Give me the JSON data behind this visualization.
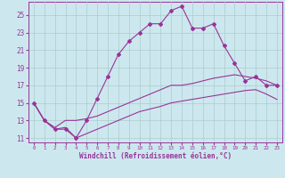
{
  "xlabel": "Windchill (Refroidissement éolien,°C)",
  "xlim": [
    -0.5,
    23.5
  ],
  "ylim": [
    10.5,
    26.5
  ],
  "yticks": [
    11,
    13,
    15,
    17,
    19,
    21,
    23,
    25
  ],
  "xticks": [
    0,
    1,
    2,
    3,
    4,
    5,
    6,
    7,
    8,
    9,
    10,
    11,
    12,
    13,
    14,
    15,
    16,
    17,
    18,
    19,
    20,
    21,
    22,
    23
  ],
  "bg_color": "#cce8ee",
  "grid_color": "#aacccc",
  "line_color": "#993399",
  "line1_x": [
    0,
    1,
    2,
    3,
    4,
    5,
    6,
    7,
    8,
    9,
    10,
    11,
    12,
    13,
    14,
    15,
    16,
    17,
    18,
    19,
    20,
    21,
    22,
    23
  ],
  "line1_y": [
    15.0,
    13.0,
    12.0,
    12.0,
    11.0,
    13.0,
    15.5,
    18.0,
    20.5,
    22.0,
    23.0,
    24.0,
    24.0,
    25.5,
    26.0,
    23.5,
    23.5,
    24.0,
    21.5,
    19.5,
    17.5,
    18.0,
    17.0,
    17.0
  ],
  "line2_x": [
    0,
    1,
    2,
    3,
    4,
    5,
    6,
    7,
    8,
    9,
    10,
    11,
    12,
    13,
    14,
    15,
    16,
    17,
    18,
    19,
    20,
    21,
    22,
    23
  ],
  "line2_y": [
    15.0,
    13.0,
    12.2,
    13.0,
    13.0,
    13.2,
    13.5,
    14.0,
    14.5,
    15.0,
    15.5,
    16.0,
    16.5,
    17.0,
    17.0,
    17.2,
    17.5,
    17.8,
    18.0,
    18.2,
    18.0,
    17.8,
    17.5,
    17.0
  ],
  "line3_x": [
    0,
    1,
    2,
    3,
    4,
    5,
    6,
    7,
    8,
    9,
    10,
    11,
    12,
    13,
    14,
    15,
    16,
    17,
    18,
    19,
    20,
    21,
    22,
    23
  ],
  "line3_y": [
    15.0,
    13.0,
    12.0,
    12.2,
    11.0,
    11.5,
    12.0,
    12.5,
    13.0,
    13.5,
    14.0,
    14.3,
    14.6,
    15.0,
    15.2,
    15.4,
    15.6,
    15.8,
    16.0,
    16.2,
    16.4,
    16.5,
    16.0,
    15.4
  ],
  "xlabel_fontsize": 5.5,
  "ytick_fontsize": 5.5,
  "xtick_fontsize": 4.2
}
